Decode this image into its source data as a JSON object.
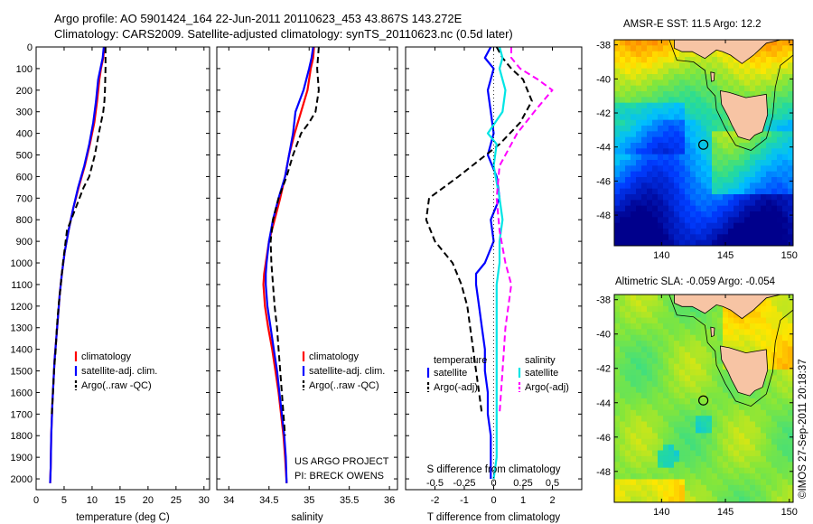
{
  "header": {
    "line1": "Argo profile: AO 5901424_164 22-Jun-2011 20110623_453 43.867S 143.272E",
    "line2": "Climatology: CARS2009. Satellite-adjusted climatology: synTS_20110623.nc (0.5d later)"
  },
  "side_note": "©IMOS 27-Sep-2011 20:18:37",
  "colors": {
    "climatology": "#ff0000",
    "satellite": "#0000ff",
    "argo": "#000000",
    "sal_satellite": "#00e5e5",
    "sal_argo": "#ff00ff",
    "land": "#f7c4a4"
  },
  "chart_data": [
    {
      "type": "line",
      "panel": "temperature",
      "xlabel": "temperature (deg C)",
      "xlim": [
        0,
        31
      ],
      "xticks": [
        0,
        5,
        10,
        15,
        20,
        25,
        30
      ],
      "ylim": [
        2050,
        0
      ],
      "yticks": [
        0,
        100,
        200,
        300,
        400,
        500,
        600,
        700,
        800,
        900,
        1000,
        1100,
        1200,
        1300,
        1400,
        1500,
        1600,
        1700,
        1800,
        1900,
        2000
      ],
      "legend_placement": "lower-center",
      "series": [
        {
          "name": "climatology",
          "style": "solid",
          "color": "#ff0000",
          "x": [
            12.2,
            12.0,
            11.6,
            11.3,
            10.9,
            10.4,
            9.6,
            8.7,
            7.6,
            6.6,
            5.8,
            5.1,
            4.6,
            4.2,
            3.9,
            3.6,
            3.3,
            3.1,
            2.9,
            2.7,
            2.6,
            2.5
          ],
          "y": [
            0,
            50,
            100,
            150,
            250,
            350,
            450,
            550,
            650,
            750,
            850,
            950,
            1050,
            1150,
            1250,
            1350,
            1450,
            1550,
            1650,
            1800,
            1950,
            2020
          ]
        },
        {
          "name": "satellite-adj. clim.",
          "style": "solid",
          "color": "#0000ff",
          "x": [
            12.1,
            11.9,
            11.5,
            11.1,
            10.7,
            10.2,
            9.5,
            8.6,
            7.5,
            6.6,
            5.8,
            5.1,
            4.6,
            4.2,
            3.9,
            3.6,
            3.3,
            3.1,
            2.9,
            2.7,
            2.6,
            2.5
          ],
          "y": [
            0,
            50,
            100,
            150,
            250,
            350,
            450,
            550,
            650,
            750,
            850,
            950,
            1050,
            1150,
            1250,
            1350,
            1450,
            1550,
            1650,
            1800,
            1950,
            2020
          ]
        },
        {
          "name": "Argo(..raw -QC)",
          "style": "dashed",
          "color": "#000000",
          "x": [
            12.4,
            12.4,
            12.3,
            12.2,
            12.0,
            11.2,
            10.5,
            9.5,
            8.5,
            7.0,
            5.5,
            4.8,
            4.4,
            4.0,
            3.7,
            3.5,
            3.2,
            3.0,
            2.8
          ],
          "y": [
            0,
            100,
            200,
            250,
            300,
            400,
            500,
            600,
            650,
            750,
            850,
            1000,
            1100,
            1200,
            1300,
            1400,
            1500,
            1600,
            1700
          ]
        }
      ]
    },
    {
      "type": "line",
      "panel": "salinity",
      "xlabel": "salinity",
      "xlim": [
        33.85,
        36.1
      ],
      "xticks": [
        34,
        34.5,
        35,
        35.5,
        36
      ],
      "ylim": [
        2050,
        0
      ],
      "legend_placement": "lower-right",
      "annotations": [
        "US ARGO PROJECT",
        "PI: BRECK OWENS"
      ],
      "series": [
        {
          "name": "climatology",
          "style": "solid",
          "color": "#ff0000",
          "x": [
            35.06,
            35.05,
            35.02,
            34.98,
            34.9,
            34.82,
            34.75,
            34.7,
            34.64,
            34.57,
            34.5,
            34.46,
            34.44,
            34.43,
            34.45,
            34.49,
            34.54,
            34.58,
            34.62,
            34.65,
            34.68,
            34.7,
            34.72
          ],
          "y": [
            0,
            50,
            100,
            200,
            300,
            400,
            500,
            600,
            700,
            800,
            900,
            1000,
            1050,
            1100,
            1200,
            1300,
            1400,
            1500,
            1600,
            1700,
            1800,
            1900,
            2020
          ]
        },
        {
          "name": "satellite-adj. clim.",
          "style": "solid",
          "color": "#0000ff",
          "x": [
            35.05,
            35.03,
            35.0,
            34.93,
            34.83,
            34.8,
            34.75,
            34.7,
            34.62,
            34.55,
            34.5,
            34.47,
            34.46,
            34.46,
            34.48,
            34.52,
            34.56,
            34.6,
            34.63,
            34.66,
            34.69,
            34.71,
            34.72
          ],
          "y": [
            0,
            50,
            100,
            200,
            300,
            400,
            500,
            600,
            700,
            800,
            900,
            1000,
            1050,
            1100,
            1200,
            1300,
            1400,
            1500,
            1600,
            1700,
            1800,
            1900,
            2020
          ]
        },
        {
          "name": "Argo(..raw -QC)",
          "style": "dashed",
          "color": "#000000",
          "x": [
            35.12,
            35.1,
            35.12,
            35.08,
            35.0,
            34.9,
            34.8,
            34.72,
            34.62,
            34.55,
            34.52,
            34.53,
            34.55,
            34.57,
            34.6,
            34.62,
            34.64,
            34.66,
            34.68,
            34.7
          ],
          "y": [
            0,
            100,
            200,
            300,
            350,
            400,
            500,
            600,
            700,
            800,
            900,
            1000,
            1100,
            1200,
            1300,
            1400,
            1500,
            1600,
            1700,
            1800
          ]
        }
      ]
    },
    {
      "type": "line",
      "panel": "difference",
      "xlabel": "T difference from climatology",
      "xlabel_secondary": "S difference from climatology",
      "xlim": [
        -3,
        3
      ],
      "xticks": [
        -2,
        -1,
        0,
        1,
        2
      ],
      "xticks_secondary": [
        "-0.5",
        "-0.25",
        "0",
        "0.25",
        "0.5"
      ],
      "ylim": [
        2050,
        0
      ],
      "legend_groups": [
        {
          "title": "temperature",
          "entries": [
            "satellite",
            "Argo(-adj)"
          ]
        },
        {
          "title": "salinity",
          "entries": [
            "satellite",
            "Argo(-adj)"
          ]
        }
      ],
      "series": [
        {
          "name": "temperature satellite",
          "style": "solid",
          "color": "#0000ff",
          "x": [
            -0.1,
            -0.3,
            0.0,
            -0.2,
            -0.1,
            0.0,
            -0.2,
            0.1,
            0.2,
            -0.1,
            0.0,
            -0.3,
            -0.6,
            -0.6,
            -0.5,
            -0.4,
            -0.3,
            -0.3,
            -0.2,
            -0.2,
            -0.1,
            -0.1
          ],
          "y": [
            0,
            50,
            100,
            200,
            300,
            400,
            500,
            600,
            700,
            800,
            900,
            1000,
            1050,
            1100,
            1200,
            1300,
            1400,
            1500,
            1600,
            1700,
            1800,
            2000
          ]
        },
        {
          "name": "temperature Argo(-adj)",
          "style": "dashed",
          "color": "#000000",
          "x": [
            0.1,
            0.3,
            0.6,
            1.0,
            1.3,
            0.9,
            0.2,
            -1.2,
            -2.2,
            -2.3,
            -2.0,
            -1.4,
            -1.1,
            -0.9,
            -0.8,
            -0.7,
            -0.6,
            -0.5,
            -0.4
          ],
          "y": [
            0,
            50,
            100,
            150,
            250,
            350,
            450,
            600,
            700,
            800,
            900,
            1000,
            1100,
            1200,
            1300,
            1400,
            1500,
            1600,
            1700
          ]
        },
        {
          "name": "salinity satellite",
          "style": "solid",
          "color": "#00e5e5",
          "x": [
            0.2,
            0.3,
            0.2,
            0.4,
            0.3,
            -0.2,
            0.1,
            0.0,
            0.2,
            0.3,
            0.2,
            0.2,
            0.1,
            0.1,
            0.1,
            0.1,
            0.1,
            0.1,
            0.0
          ],
          "y": [
            0,
            50,
            100,
            200,
            300,
            400,
            450,
            550,
            700,
            800,
            900,
            1000,
            1100,
            1200,
            1400,
            1600,
            1800,
            1900,
            2000
          ]
        },
        {
          "name": "salinity Argo(-adj)",
          "style": "dashed",
          "color": "#ff00ff",
          "x": [
            0.6,
            0.6,
            0.9,
            1.5,
            2.0,
            1.5,
            0.8,
            0.2,
            0.1,
            0.2,
            0.4,
            0.6,
            0.5,
            0.4,
            0.3,
            0.2
          ],
          "y": [
            0,
            50,
            100,
            150,
            200,
            280,
            400,
            550,
            700,
            850,
            1000,
            1100,
            1200,
            1300,
            1500,
            1700
          ]
        }
      ]
    },
    {
      "type": "heatmap",
      "panel": "map-sst",
      "title": "AMSR-E SST: 11.5 Argo: 12.2",
      "xlim": [
        136.3,
        150.3
      ],
      "xticks": [
        140,
        145,
        150
      ],
      "ylim": [
        -49.8,
        -37.7
      ],
      "yticks": [
        -38,
        -40,
        -42,
        -44,
        -46,
        -48
      ],
      "marker": {
        "lon": 143.272,
        "lat": -43.867
      }
    },
    {
      "type": "heatmap",
      "panel": "map-sla",
      "title": "Altimetric SLA: -0.059 Argo: -0.054",
      "xlim": [
        136.3,
        150.3
      ],
      "xticks": [
        140,
        145,
        150
      ],
      "ylim": [
        -49.8,
        -37.7
      ],
      "yticks": [
        -38,
        -40,
        -42,
        -44,
        -46,
        -48
      ],
      "marker": {
        "lon": 143.272,
        "lat": -43.867
      }
    }
  ]
}
